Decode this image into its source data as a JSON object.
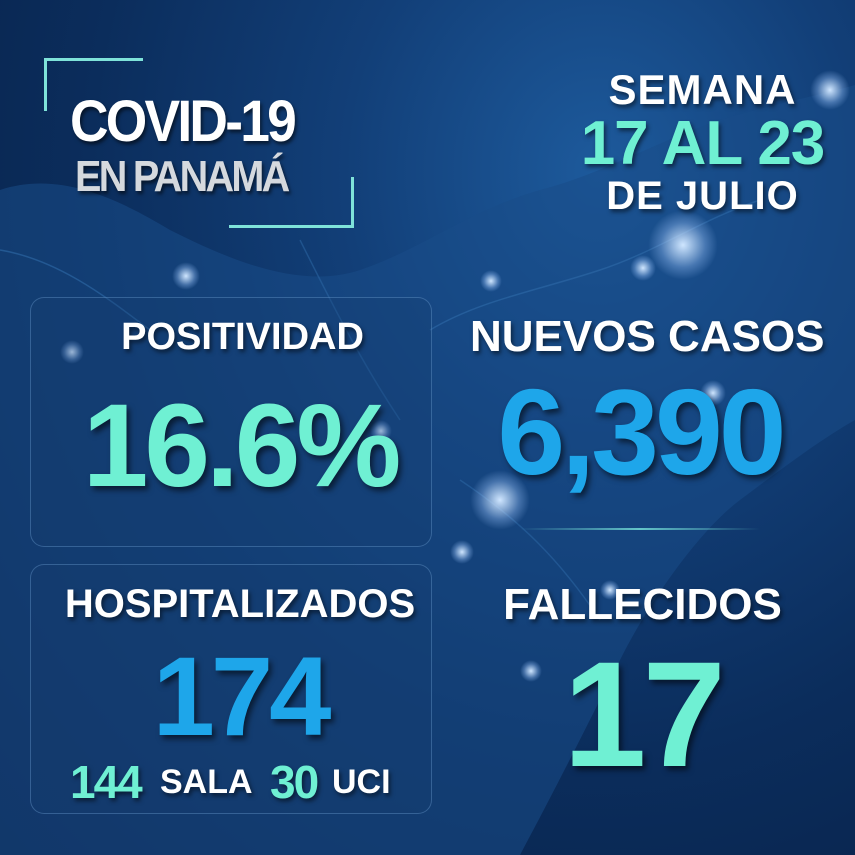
{
  "title": {
    "line1": "COVID-19",
    "line2": "EN PANAMÁ"
  },
  "week": {
    "label": "SEMANA",
    "range": "17 AL 23",
    "month": "DE JULIO"
  },
  "positividad": {
    "label": "POSITIVIDAD",
    "value": "16.6%"
  },
  "nuevos_casos": {
    "label": "NUEVOS CASOS",
    "value": "6,390"
  },
  "hospitalizados": {
    "label": "HOSPITALIZADOS",
    "value": "174",
    "sala": {
      "value": "144",
      "label": "SALA"
    },
    "uci": {
      "value": "30",
      "label": "UCI"
    }
  },
  "fallecidos": {
    "label": "FALLECIDOS",
    "value": "17"
  },
  "colors": {
    "mint": "#6ff0d3",
    "blue": "#1ea6ea",
    "background": "#0b2d5c"
  }
}
